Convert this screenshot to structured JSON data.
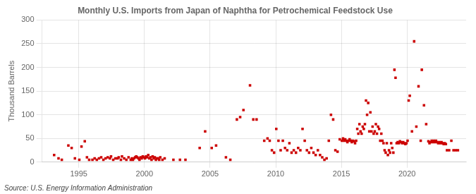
{
  "chart_data": {
    "type": "scatter",
    "title": "Monthly U.S. Imports from Japan of Naphtha for Petrochemical Feedstock Use",
    "ylabel": "Thousand Barrels",
    "annotations": [
      "Source: U.S. Energy Information Administration"
    ],
    "color": "#cc0000",
    "marker": "square",
    "grid": true,
    "xlim": [
      1992.2,
      2024.5
    ],
    "xticks": [
      1995,
      2000,
      2005,
      2010,
      2015,
      2020
    ],
    "ylim": [
      0,
      300
    ],
    "yticks": [
      0,
      50,
      100,
      150,
      200,
      250,
      300
    ],
    "x": [
      1993.125,
      1993.458333,
      1993.708333,
      1994.208333,
      1994.458333,
      1994.708333,
      1995.041667,
      1995.208333,
      1995.458333,
      1995.625,
      1995.791667,
      1996.041667,
      1996.208333,
      1996.375,
      1996.541667,
      1996.708333,
      1996.875,
      1997.041667,
      1997.208333,
      1997.375,
      1997.458333,
      1997.625,
      1997.791667,
      1997.958333,
      1998.041667,
      1998.208333,
      1998.291667,
      1998.458333,
      1998.625,
      1998.791667,
      1998.958333,
      1999.041667,
      1999.125,
      1999.208333,
      1999.291667,
      1999.375,
      1999.458333,
      1999.541667,
      1999.625,
      1999.708333,
      1999.791667,
      1999.875,
      1999.958333,
      2000.041667,
      2000.125,
      2000.208333,
      2000.291667,
      2000.375,
      2000.458333,
      2000.541667,
      2000.625,
      2000.708333,
      2000.791667,
      2000.875,
      2000.958333,
      2001.041667,
      2001.125,
      2001.208333,
      2001.375,
      2001.541667,
      2002.208333,
      2002.708333,
      2003.125,
      2004.208333,
      2004.625,
      2005.125,
      2005.458333,
      2006.208333,
      2006.541667,
      2007.041667,
      2007.291667,
      2007.541667,
      2008.041667,
      2008.291667,
      2008.541667,
      2009.125,
      2009.375,
      2009.541667,
      2009.708333,
      2009.875,
      2010.041667,
      2010.208333,
      2010.375,
      2010.541667,
      2010.708333,
      2010.875,
      2011.041667,
      2011.208333,
      2011.375,
      2011.541667,
      2011.708333,
      2011.875,
      2012.041667,
      2012.208333,
      2012.375,
      2012.541667,
      2012.708333,
      2012.875,
      2013.041667,
      2013.208333,
      2013.375,
      2013.541667,
      2013.708333,
      2013.875,
      2014.041667,
      2014.208333,
      2014.375,
      2014.541667,
      2014.708333,
      2014.875,
      2015.041667,
      2015.125,
      2015.208333,
      2015.291667,
      2015.375,
      2015.458333,
      2015.541667,
      2015.625,
      2015.708333,
      2015.791667,
      2015.875,
      2015.958333,
      2016.041667,
      2016.125,
      2016.208333,
      2016.291667,
      2016.375,
      2016.458333,
      2016.541667,
      2016.625,
      2016.708333,
      2016.791667,
      2016.875,
      2016.958333,
      2017.041667,
      2017.125,
      2017.208333,
      2017.291667,
      2017.375,
      2017.458333,
      2017.541667,
      2017.625,
      2017.708333,
      2017.791667,
      2017.875,
      2017.958333,
      2018.041667,
      2018.125,
      2018.208333,
      2018.291667,
      2018.375,
      2018.458333,
      2018.541667,
      2018.625,
      2018.708333,
      2018.791667,
      2018.875,
      2018.958333,
      2019.041667,
      2019.125,
      2019.208333,
      2019.291667,
      2019.375,
      2019.458333,
      2019.541667,
      2019.625,
      2019.708333,
      2019.791667,
      2019.875,
      2019.958333,
      2020.041667,
      2020.125,
      2020.208333,
      2020.375,
      2020.541667,
      2020.708333,
      2020.875,
      2021.041667,
      2021.125,
      2021.291667,
      2021.458333,
      2021.625,
      2021.708333,
      2021.791667,
      2021.875,
      2021.958333,
      2022.041667,
      2022.125,
      2022.208333,
      2022.291667,
      2022.375,
      2022.458333,
      2022.541667,
      2022.625,
      2022.708333,
      2022.791667,
      2022.875,
      2022.958333,
      2023.041667,
      2023.208333,
      2023.375,
      2023.541667,
      2023.708333,
      2023.875
    ],
    "values": [
      15,
      8,
      5,
      35,
      30,
      8,
      5,
      33,
      44,
      10,
      5,
      5,
      8,
      5,
      8,
      10,
      5,
      8,
      10,
      8,
      12,
      5,
      8,
      8,
      10,
      5,
      12,
      8,
      5,
      10,
      5,
      8,
      5,
      8,
      10,
      12,
      10,
      8,
      5,
      10,
      8,
      12,
      10,
      8,
      12,
      10,
      15,
      8,
      10,
      5,
      12,
      8,
      10,
      5,
      8,
      8,
      5,
      10,
      5,
      8,
      5,
      5,
      5,
      30,
      65,
      30,
      35,
      10,
      5,
      90,
      95,
      110,
      162,
      90,
      90,
      45,
      50,
      45,
      25,
      20,
      70,
      45,
      25,
      45,
      30,
      25,
      40,
      20,
      25,
      20,
      30,
      25,
      70,
      45,
      25,
      20,
      30,
      20,
      15,
      25,
      15,
      10,
      5,
      8,
      45,
      100,
      90,
      25,
      22,
      48,
      45,
      50,
      45,
      48,
      45,
      42,
      45,
      48,
      45,
      42,
      45,
      44,
      40,
      45,
      70,
      60,
      80,
      65,
      60,
      75,
      70,
      80,
      130,
      100,
      125,
      65,
      105,
      65,
      75,
      60,
      65,
      80,
      60,
      75,
      70,
      45,
      60,
      45,
      40,
      25,
      20,
      40,
      15,
      25,
      20,
      40,
      30,
      20,
      195,
      178,
      40,
      42,
      40,
      44,
      42,
      40,
      42,
      40,
      38,
      40,
      45,
      130,
      140,
      65,
      255,
      75,
      160,
      45,
      195,
      120,
      80,
      44,
      40,
      42,
      45,
      42,
      45,
      42,
      45,
      42,
      40,
      42,
      40,
      42,
      40,
      38,
      40,
      38,
      25,
      25,
      45,
      25,
      25,
      25
    ]
  }
}
